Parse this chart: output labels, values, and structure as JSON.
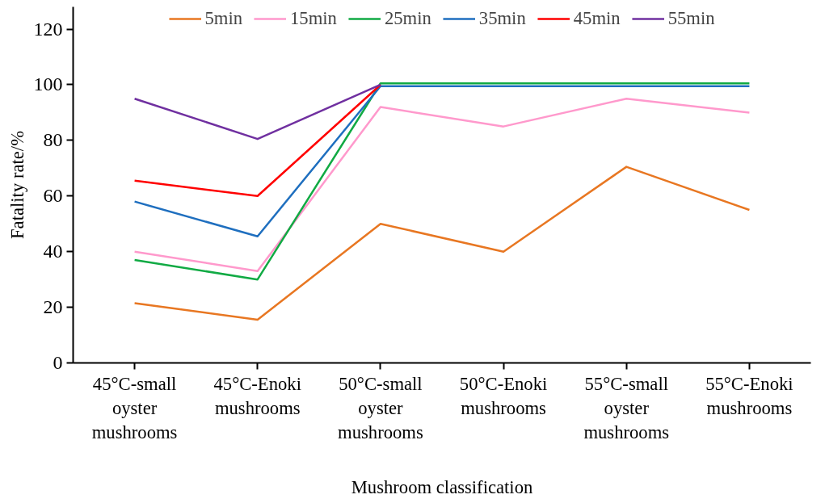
{
  "chart_data": {
    "type": "line",
    "xlabel": "Mushroom classification",
    "ylabel": "Fatality rate/%",
    "categories": [
      "45°C-small oyster mushrooms",
      "45°C-Enoki mushrooms",
      "50°C-small oyster mushrooms",
      "50°C-Enoki mushrooms",
      "55°C-small oyster mushrooms",
      "55°C-Enoki mushrooms"
    ],
    "series": [
      {
        "name": "5min",
        "color": "#e87722",
        "values": [
          21.5,
          15.5,
          50,
          40,
          70.5,
          55
        ]
      },
      {
        "name": "15min",
        "color": "#ff99cc",
        "values": [
          40,
          33,
          92,
          85,
          95,
          90
        ]
      },
      {
        "name": "25min",
        "color": "#11aa44",
        "values": [
          37,
          30,
          100.5,
          100.5,
          100.5,
          100.5
        ]
      },
      {
        "name": "35min",
        "color": "#1f6fbf",
        "values": [
          58,
          45.5,
          99.5,
          99.5,
          99.5,
          99.5
        ]
      },
      {
        "name": "45min",
        "color": "#ff0000",
        "values": [
          65.5,
          60,
          100,
          null,
          null,
          null
        ]
      },
      {
        "name": "55min",
        "color": "#7030a0",
        "values": [
          95,
          80.5,
          100,
          null,
          null,
          null
        ]
      }
    ],
    "ylim": [
      0,
      128
    ],
    "yticks": [
      0,
      20,
      40,
      60,
      80,
      100,
      120
    ],
    "grid": false,
    "legend": "top",
    "marker": "none",
    "line_style": "solid"
  }
}
